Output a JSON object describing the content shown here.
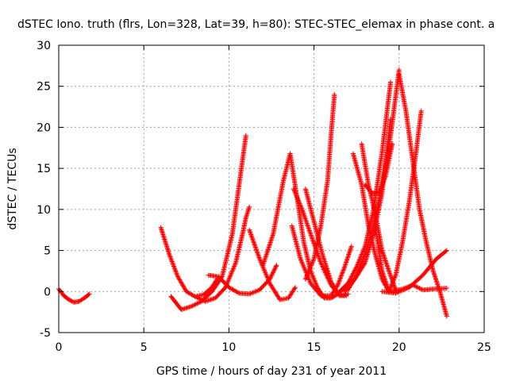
{
  "chart_data": {
    "type": "scatter",
    "title": "dSTEC Iono. truth (flrs, Lon=328, Lat=39, h=80): STEC-STEC_elemax in phase cont. a",
    "xlabel": "GPS time / hours of day 231 of year 2011",
    "ylabel": "dSTEC  / TECUs",
    "xlim": [
      0,
      25
    ],
    "ylim": [
      -5,
      30
    ],
    "xticks": [
      0,
      5,
      10,
      15,
      20,
      25
    ],
    "yticks": [
      -5,
      0,
      5,
      10,
      15,
      20,
      25,
      30
    ],
    "grid": true,
    "marker": "+",
    "color": "#ff0000",
    "series": [
      {
        "x": [
          0.0,
          0.3,
          0.6,
          0.9,
          1.2,
          1.5,
          1.8
        ],
        "y": [
          0.3,
          -0.5,
          -1.0,
          -1.3,
          -1.2,
          -0.8,
          -0.3
        ]
      },
      {
        "x": [
          6.0,
          6.5,
          7.0,
          7.5,
          8.0,
          8.5,
          9.0,
          9.3
        ],
        "y": [
          7.8,
          4.5,
          1.8,
          0.0,
          -0.6,
          -0.4,
          0.5,
          1.5
        ]
      },
      {
        "x": [
          6.6,
          7.2,
          7.8,
          8.4,
          9.0,
          9.6,
          10.2,
          10.5,
          10.8,
          11.0
        ],
        "y": [
          -0.6,
          -2.2,
          -1.8,
          -1.2,
          0.0,
          1.8,
          7.0,
          11.5,
          16.0,
          19.0
        ]
      },
      {
        "x": [
          8.0,
          8.6,
          9.2,
          9.8,
          10.4,
          10.8,
          11.0,
          11.2
        ],
        "y": [
          -0.6,
          -1.2,
          -0.8,
          0.5,
          3.5,
          7.0,
          9.0,
          10.3
        ]
      },
      {
        "x": [
          8.8,
          9.4,
          10.0,
          10.6,
          11.2,
          11.8,
          12.4,
          12.8
        ],
        "y": [
          2.0,
          1.8,
          0.5,
          -0.2,
          -0.3,
          0.2,
          1.5,
          3.2
        ]
      },
      {
        "x": [
          11.2,
          11.8,
          12.4,
          13.0,
          13.5,
          13.9
        ],
        "y": [
          7.5,
          4.0,
          1.0,
          -1.0,
          -0.8,
          0.5
        ]
      },
      {
        "x": [
          12.0,
          12.6,
          13.2,
          13.6,
          14.0,
          14.4,
          14.8,
          15.2,
          15.6,
          16.0,
          16.4,
          16.8,
          17.2
        ],
        "y": [
          3.2,
          7.0,
          13.5,
          16.8,
          11.5,
          6.0,
          2.5,
          0.5,
          -0.8,
          -0.8,
          -0.3,
          0.5,
          1.5
        ]
      },
      {
        "x": [
          13.7,
          14.2,
          14.8,
          15.4,
          16.0
        ],
        "y": [
          8.0,
          4.0,
          1.0,
          -0.5,
          -0.8
        ]
      },
      {
        "x": [
          13.8,
          14.3,
          14.8,
          15.4,
          16.0,
          16.5,
          16.9
        ],
        "y": [
          12.5,
          10.0,
          7.0,
          3.5,
          0.8,
          -0.5,
          -0.5
        ]
      },
      {
        "x": [
          14.5,
          15.0,
          15.5,
          16.0,
          16.5,
          17.0
        ],
        "y": [
          12.5,
          8.5,
          4.5,
          1.2,
          -0.5,
          -0.3
        ]
      },
      {
        "x": [
          14.5,
          15.0,
          15.4,
          15.8,
          16.0,
          16.2
        ],
        "y": [
          1.5,
          4.0,
          8.0,
          13.5,
          19.0,
          24.0
        ]
      },
      {
        "x": [
          15.5,
          16.0,
          16.4,
          16.8,
          17.2
        ],
        "y": [
          -0.5,
          -0.5,
          0.8,
          3.0,
          5.5
        ]
      },
      {
        "x": [
          17.3,
          17.8,
          18.2,
          18.6,
          19.0,
          19.4
        ],
        "y": [
          16.8,
          13.0,
          8.0,
          4.5,
          1.5,
          0.0
        ]
      },
      {
        "x": [
          17.8,
          18.2,
          18.6,
          19.0,
          19.4,
          19.8
        ],
        "y": [
          18.0,
          13.0,
          9.5,
          5.0,
          2.5,
          0.2
        ]
      },
      {
        "x": [
          16.5,
          17.0,
          17.5,
          18.0,
          18.5,
          19.0,
          19.5
        ],
        "y": [
          0.0,
          1.0,
          3.0,
          5.5,
          10.0,
          17.0,
          25.5
        ]
      },
      {
        "x": [
          17.0,
          17.5,
          18.0,
          18.5,
          19.0,
          19.5,
          20.0
        ],
        "y": [
          0.2,
          2.0,
          4.5,
          8.0,
          13.0,
          19.0,
          27.0
        ]
      },
      {
        "x": [
          16.8,
          17.4,
          18.0,
          18.5,
          19.0,
          19.5
        ],
        "y": [
          0.0,
          1.5,
          3.5,
          7.0,
          12.0,
          21.0
        ]
      },
      {
        "x": [
          18.0,
          18.4,
          18.8,
          19.2,
          19.6
        ],
        "y": [
          13.0,
          12.0,
          12.0,
          14.0,
          18.0
        ]
      },
      {
        "x": [
          18.6,
          19.0,
          19.4,
          19.8,
          20.2,
          20.6,
          21.0,
          21.3
        ],
        "y": [
          8.0,
          2.5,
          0.0,
          2.0,
          6.0,
          11.0,
          17.0,
          22.0
        ]
      },
      {
        "x": [
          20.0,
          20.4,
          20.8,
          21.2,
          21.6,
          22.0,
          22.4,
          22.8
        ],
        "y": [
          26.5,
          22.0,
          16.0,
          10.0,
          6.0,
          2.5,
          0.0,
          -3.0
        ]
      },
      {
        "x": [
          19.0,
          19.8,
          20.6,
          21.4,
          22.2,
          22.8
        ],
        "y": [
          0.0,
          -0.2,
          0.5,
          2.0,
          4.0,
          5.0
        ]
      },
      {
        "x": [
          19.5,
          20.2,
          20.8,
          21.4,
          22.0,
          22.8
        ],
        "y": [
          0.0,
          0.3,
          0.8,
          0.2,
          0.3,
          0.4
        ]
      }
    ]
  }
}
